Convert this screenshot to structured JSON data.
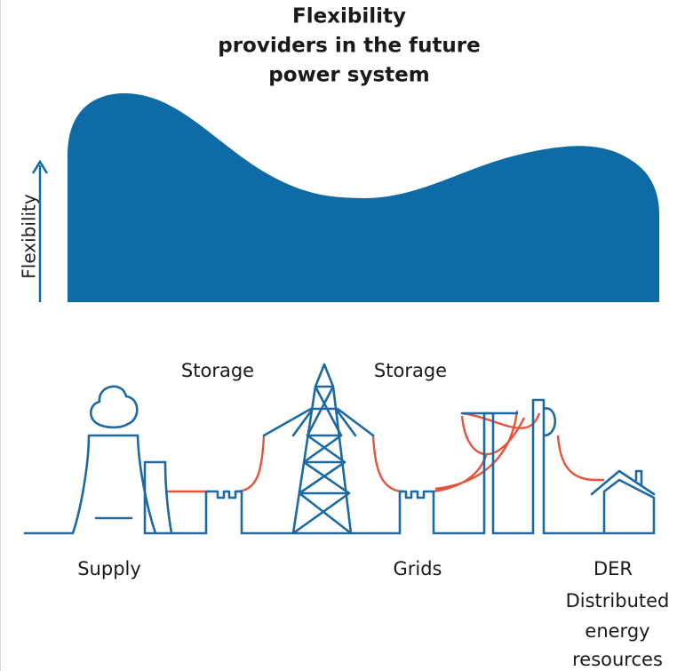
{
  "title": [
    "Flexibility",
    "providers in the future",
    "power system"
  ],
  "axis_label": "Flexibility",
  "labels": {
    "storage_left": "Storage",
    "storage_right": "Storage",
    "supply": "Supply",
    "grids": "Grids",
    "der": "DER",
    "der_description": [
      "Distributed",
      "energy",
      "resources"
    ]
  }
}
